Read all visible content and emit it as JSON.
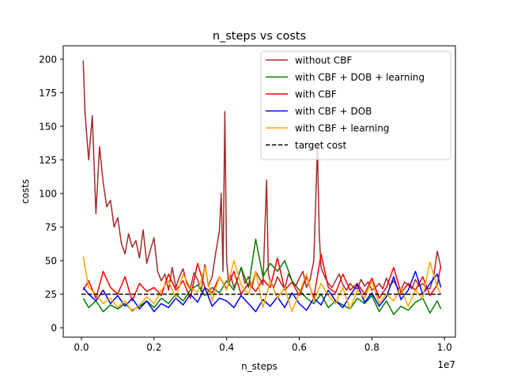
{
  "chart_data": {
    "type": "line",
    "title": "n_steps vs costs",
    "xlabel": "n_steps",
    "ylabel": "costs",
    "x_offset_text": "1e7",
    "xlim": [
      -0.05,
      1.03
    ],
    "ylim": [
      -7,
      210
    ],
    "x_ticks": [
      0.0,
      0.2,
      0.4,
      0.6,
      0.8,
      1.0
    ],
    "x_tick_labels": [
      "0.0",
      "0.2",
      "0.4",
      "0.6",
      "0.8",
      "1.0"
    ],
    "y_ticks": [
      0,
      25,
      50,
      75,
      100,
      125,
      150,
      175,
      200
    ],
    "y_tick_labels": [
      "0",
      "25",
      "50",
      "75",
      "100",
      "125",
      "150",
      "175",
      "200"
    ],
    "legend_position": "upper-right",
    "series": [
      {
        "name": "without CBF",
        "color": "#a52a2a",
        "linestyle": "solid",
        "x": [
          0.005,
          0.01,
          0.02,
          0.03,
          0.04,
          0.05,
          0.06,
          0.07,
          0.08,
          0.09,
          0.1,
          0.11,
          0.12,
          0.13,
          0.14,
          0.15,
          0.16,
          0.17,
          0.18,
          0.19,
          0.2,
          0.21,
          0.22,
          0.23,
          0.24,
          0.25,
          0.26,
          0.27,
          0.28,
          0.29,
          0.3,
          0.31,
          0.32,
          0.33,
          0.34,
          0.35,
          0.36,
          0.37,
          0.38,
          0.385,
          0.39,
          0.395,
          0.4,
          0.405,
          0.41,
          0.42,
          0.43,
          0.44,
          0.45,
          0.46,
          0.47,
          0.48,
          0.49,
          0.5,
          0.51,
          0.515,
          0.52,
          0.53,
          0.54,
          0.55,
          0.56,
          0.57,
          0.58,
          0.59,
          0.6,
          0.61,
          0.62,
          0.63,
          0.64,
          0.645,
          0.65,
          0.655,
          0.66,
          0.67,
          0.68,
          0.69,
          0.7,
          0.71,
          0.72,
          0.73,
          0.74,
          0.75,
          0.76,
          0.77,
          0.78,
          0.79,
          0.8,
          0.81,
          0.82,
          0.83,
          0.84,
          0.85,
          0.86,
          0.87,
          0.88,
          0.89,
          0.9,
          0.91,
          0.92,
          0.93,
          0.94,
          0.95,
          0.96,
          0.97,
          0.98,
          0.99
        ],
        "y": [
          199,
          160,
          125,
          158,
          85,
          135,
          108,
          90,
          95,
          75,
          82,
          63,
          55,
          70,
          60,
          65,
          52,
          73,
          48,
          58,
          67,
          42,
          35,
          40,
          28,
          45,
          30,
          38,
          44,
          33,
          29,
          41,
          36,
          27,
          47,
          31,
          38,
          56,
          72,
          100,
          42,
          161,
          50,
          34,
          40,
          30,
          36,
          45,
          33,
          38,
          30,
          42,
          37,
          32,
          110,
          40,
          35,
          30,
          38,
          33,
          29,
          40,
          35,
          31,
          37,
          42,
          30,
          36,
          50,
          92,
          135,
          70,
          45,
          38,
          33,
          30,
          35,
          40,
          32,
          28,
          33,
          30,
          29,
          36,
          31,
          34,
          28,
          30,
          33,
          29,
          37,
          31,
          35,
          30,
          28,
          34,
          32,
          29,
          36,
          31,
          33,
          30,
          29,
          38,
          57,
          45
        ]
      },
      {
        "name": "with CBF + DOB + learning",
        "color": "#008000",
        "linestyle": "solid",
        "x": [
          0.005,
          0.02,
          0.04,
          0.06,
          0.08,
          0.1,
          0.12,
          0.14,
          0.16,
          0.18,
          0.2,
          0.22,
          0.24,
          0.26,
          0.28,
          0.3,
          0.32,
          0.34,
          0.36,
          0.38,
          0.4,
          0.42,
          0.44,
          0.46,
          0.48,
          0.5,
          0.52,
          0.54,
          0.56,
          0.58,
          0.6,
          0.62,
          0.64,
          0.66,
          0.68,
          0.7,
          0.72,
          0.74,
          0.76,
          0.78,
          0.8,
          0.82,
          0.84,
          0.86,
          0.88,
          0.9,
          0.92,
          0.94,
          0.96,
          0.98,
          0.99
        ],
        "y": [
          22,
          15,
          20,
          12,
          17,
          14,
          18,
          13,
          16,
          20,
          15,
          22,
          18,
          25,
          20,
          28,
          32,
          24,
          30,
          26,
          35,
          28,
          45,
          30,
          66,
          38,
          48,
          42,
          50,
          35,
          28,
          22,
          18,
          25,
          15,
          20,
          17,
          14,
          22,
          18,
          24,
          12,
          20,
          10,
          16,
          13,
          19,
          22,
          11,
          20,
          14
        ]
      },
      {
        "name": "with CBF",
        "color": "#ff0000",
        "linestyle": "solid",
        "x": [
          0.005,
          0.02,
          0.04,
          0.06,
          0.08,
          0.1,
          0.12,
          0.14,
          0.16,
          0.18,
          0.2,
          0.22,
          0.24,
          0.26,
          0.28,
          0.3,
          0.32,
          0.34,
          0.36,
          0.38,
          0.4,
          0.42,
          0.44,
          0.46,
          0.48,
          0.5,
          0.52,
          0.54,
          0.56,
          0.58,
          0.6,
          0.62,
          0.64,
          0.66,
          0.68,
          0.7,
          0.72,
          0.74,
          0.76,
          0.78,
          0.8,
          0.82,
          0.84,
          0.86,
          0.88,
          0.9,
          0.92,
          0.94,
          0.96,
          0.98,
          0.99
        ],
        "y": [
          28,
          35,
          22,
          42,
          30,
          25,
          38,
          20,
          33,
          27,
          30,
          24,
          40,
          28,
          35,
          22,
          48,
          30,
          26,
          38,
          29,
          42,
          25,
          33,
          27,
          36,
          30,
          52,
          28,
          34,
          24,
          38,
          22,
          55,
          30,
          26,
          40,
          28,
          33,
          25,
          37,
          22,
          30,
          45,
          26,
          33,
          28,
          38,
          24,
          32,
          46
        ]
      },
      {
        "name": "with CBF + DOB",
        "color": "#0000ff",
        "linestyle": "solid",
        "x": [
          0.005,
          0.02,
          0.04,
          0.06,
          0.08,
          0.1,
          0.12,
          0.14,
          0.16,
          0.18,
          0.2,
          0.22,
          0.24,
          0.26,
          0.28,
          0.3,
          0.32,
          0.34,
          0.36,
          0.38,
          0.4,
          0.42,
          0.44,
          0.46,
          0.48,
          0.5,
          0.52,
          0.54,
          0.56,
          0.58,
          0.6,
          0.62,
          0.64,
          0.66,
          0.68,
          0.7,
          0.72,
          0.74,
          0.76,
          0.78,
          0.8,
          0.82,
          0.84,
          0.86,
          0.88,
          0.9,
          0.92,
          0.94,
          0.96,
          0.98,
          0.99
        ],
        "y": [
          30,
          25,
          20,
          28,
          18,
          24,
          16,
          22,
          14,
          20,
          12,
          18,
          15,
          22,
          17,
          25,
          19,
          30,
          16,
          22,
          20,
          15,
          24,
          18,
          12,
          21,
          16,
          23,
          15,
          26,
          18,
          13,
          22,
          17,
          28,
          20,
          15,
          24,
          32,
          19,
          26,
          16,
          23,
          38,
          21,
          28,
          42,
          25,
          33,
          40,
          30
        ]
      },
      {
        "name": "with CBF + learning",
        "color": "#ffa500",
        "linestyle": "solid",
        "x": [
          0.005,
          0.02,
          0.04,
          0.06,
          0.08,
          0.1,
          0.12,
          0.14,
          0.16,
          0.18,
          0.2,
          0.22,
          0.24,
          0.26,
          0.28,
          0.3,
          0.32,
          0.34,
          0.36,
          0.38,
          0.4,
          0.42,
          0.44,
          0.46,
          0.48,
          0.5,
          0.52,
          0.54,
          0.56,
          0.58,
          0.6,
          0.62,
          0.64,
          0.66,
          0.68,
          0.7,
          0.72,
          0.74,
          0.76,
          0.78,
          0.8,
          0.82,
          0.84,
          0.86,
          0.88,
          0.9,
          0.92,
          0.94,
          0.96,
          0.98,
          0.99
        ],
        "y": [
          53,
          30,
          25,
          18,
          22,
          15,
          20,
          12,
          17,
          23,
          18,
          28,
          35,
          22,
          40,
          30,
          26,
          45,
          20,
          38,
          28,
          50,
          32,
          25,
          42,
          15,
          35,
          22,
          30,
          12,
          26,
          40,
          20,
          33,
          24,
          18,
          30,
          14,
          28,
          22,
          35,
          18,
          25,
          20,
          30,
          16,
          28,
          22,
          49,
          30,
          25
        ]
      },
      {
        "name": "target cost",
        "color": "#000000",
        "linestyle": "dashed",
        "x": [
          0.0,
          0.99
        ],
        "y": [
          25,
          25
        ]
      }
    ]
  }
}
